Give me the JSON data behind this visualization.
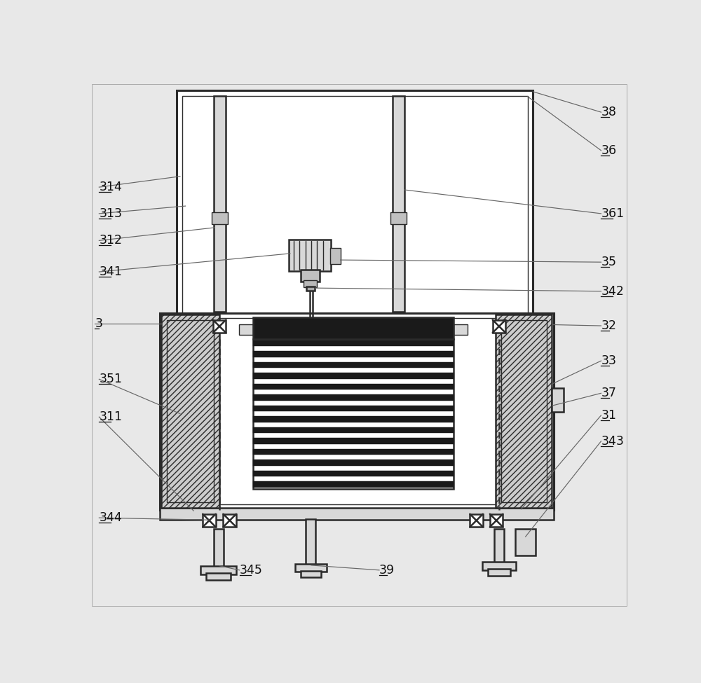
{
  "bg_color": "#e8e8e8",
  "white": "#ffffff",
  "dark": "#1a1a1a",
  "gray_light": "#d8d8d8",
  "gray_med": "#c0c0c0",
  "line_color": "#2a2a2a",
  "label_line_color": "#666666",
  "label_color": "#111111",
  "label_fontsize": 12.5,
  "lw_outer": 2.2,
  "lw_main": 1.8,
  "lw_thin": 1.0,
  "lw_label": 0.85
}
